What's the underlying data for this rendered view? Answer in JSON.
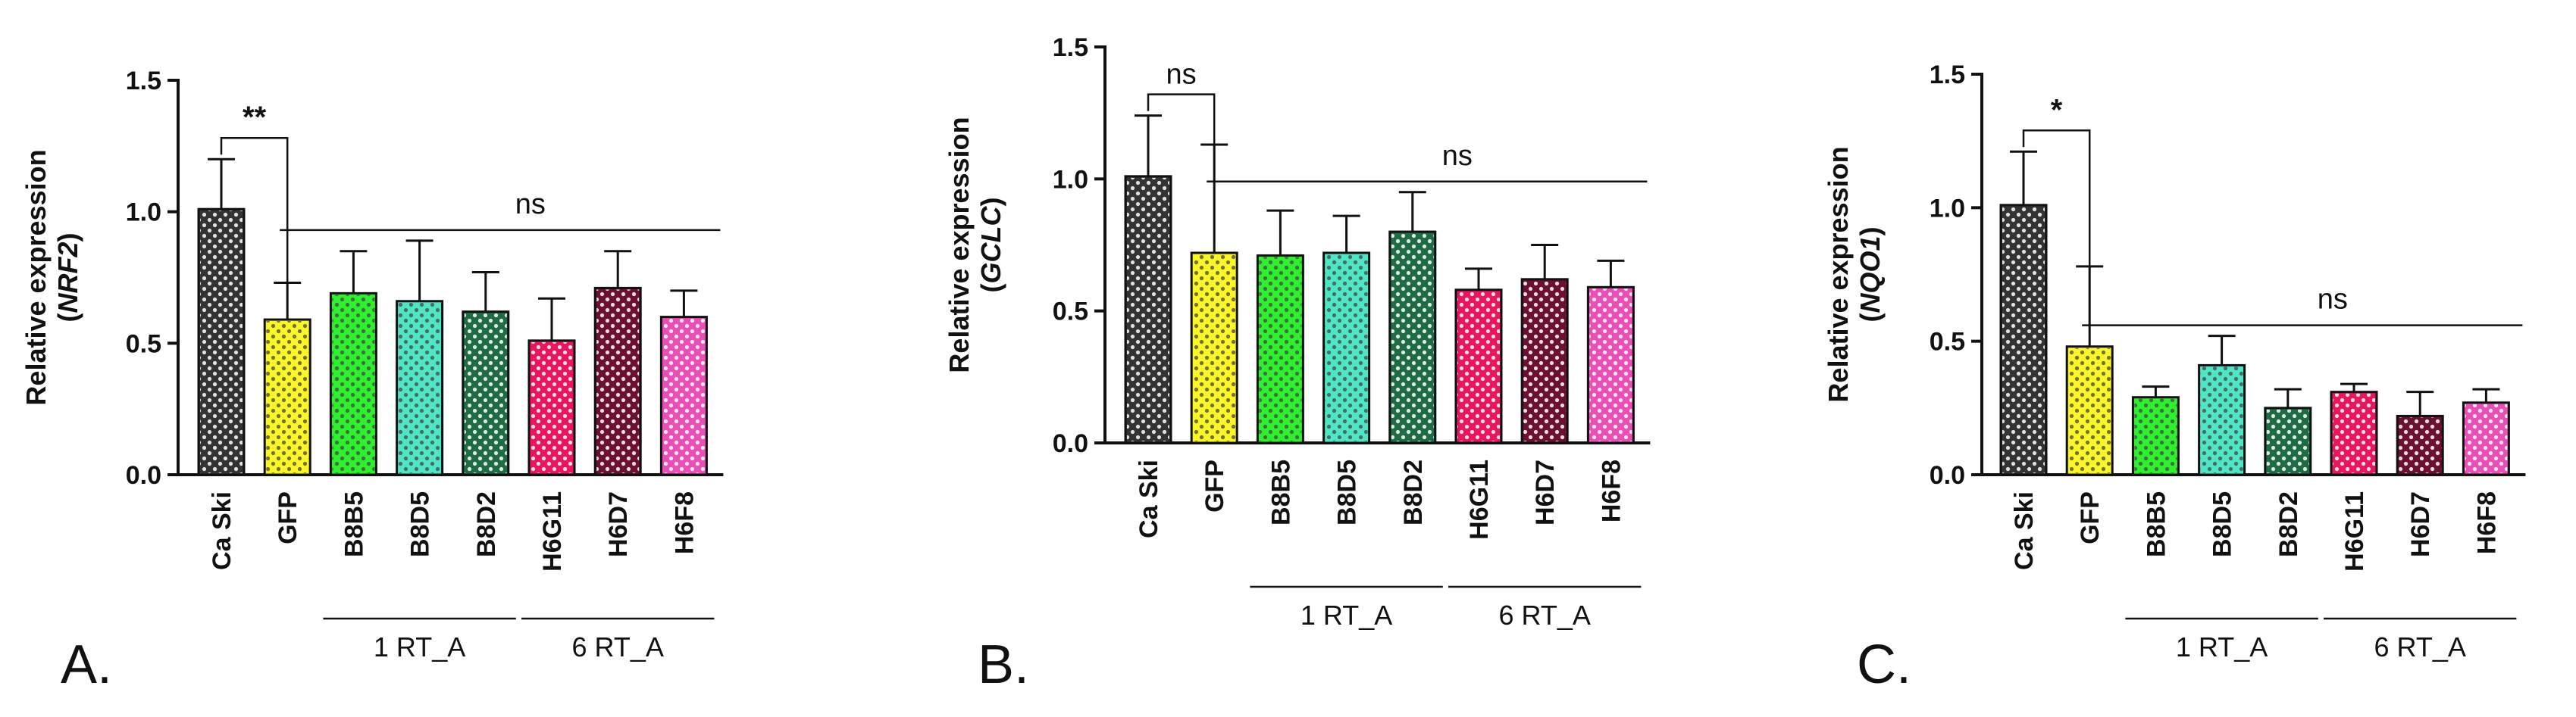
{
  "chart_data": [
    {
      "type": "bar",
      "panel_label": "A.",
      "ylabel": "Relative expression",
      "ylabel_gene": "NRF2",
      "ylim": [
        0,
        1.5
      ],
      "yticks": [
        "0.0",
        "0.5",
        "1.0",
        "1.5"
      ],
      "categories": [
        "Ca Ski",
        "GFP",
        "B8B5",
        "B8D5",
        "B8D2",
        "H6G11",
        "H6D7",
        "H6F8"
      ],
      "values": [
        1.01,
        0.59,
        0.69,
        0.66,
        0.62,
        0.51,
        0.71,
        0.6
      ],
      "errors": [
        0.19,
        0.14,
        0.16,
        0.23,
        0.15,
        0.16,
        0.14,
        0.1
      ],
      "colors": [
        "#333333",
        "#fbf629",
        "#2ef02e",
        "#4ee6c4",
        "#1e6b44",
        "#ea155f",
        "#6b0f33",
        "#ea4fb5"
      ],
      "groups": [
        {
          "label": "1 RT_A",
          "from": 2,
          "to": 4
        },
        {
          "label": "6 RT_A",
          "from": 5,
          "to": 7
        }
      ],
      "significance": [
        {
          "label": "**",
          "type": "pair",
          "from": 0,
          "to": 1
        },
        {
          "label": "ns",
          "type": "span",
          "from": 1,
          "to": 7
        }
      ]
    },
    {
      "type": "bar",
      "panel_label": "B.",
      "ylabel": "Relative expression",
      "ylabel_gene": "GCLC",
      "ylim": [
        0,
        1.5
      ],
      "yticks": [
        "0.0",
        "0.5",
        "1.0",
        "1.5"
      ],
      "categories": [
        "Ca Ski",
        "GFP",
        "B8B5",
        "B8D5",
        "B8D2",
        "H6G11",
        "H6D7",
        "H6F8"
      ],
      "values": [
        1.01,
        0.72,
        0.71,
        0.72,
        0.8,
        0.58,
        0.62,
        0.59
      ],
      "errors": [
        0.23,
        0.41,
        0.17,
        0.14,
        0.15,
        0.08,
        0.13,
        0.1
      ],
      "colors": [
        "#333333",
        "#fbf629",
        "#2ef02e",
        "#4ee6c4",
        "#1e6b44",
        "#ea155f",
        "#6b0f33",
        "#ea4fb5"
      ],
      "groups": [
        {
          "label": "1 RT_A",
          "from": 2,
          "to": 4
        },
        {
          "label": "6 RT_A",
          "from": 5,
          "to": 7
        }
      ],
      "significance": [
        {
          "label": "ns",
          "type": "pair",
          "from": 0,
          "to": 1
        },
        {
          "label": "ns",
          "type": "span",
          "from": 1,
          "to": 7
        }
      ]
    },
    {
      "type": "bar",
      "panel_label": "C.",
      "ylabel": "Relative expression",
      "ylabel_gene": "NQO1",
      "ylim": [
        0,
        1.5
      ],
      "yticks": [
        "0.0",
        "0.5",
        "1.0",
        "1.5"
      ],
      "categories": [
        "Ca Ski",
        "GFP",
        "B8B5",
        "B8D5",
        "B8D2",
        "H6G11",
        "H6D7",
        "H6F8"
      ],
      "values": [
        1.01,
        0.48,
        0.29,
        0.41,
        0.25,
        0.31,
        0.22,
        0.27
      ],
      "errors": [
        0.2,
        0.3,
        0.04,
        0.11,
        0.07,
        0.03,
        0.09,
        0.05
      ],
      "colors": [
        "#333333",
        "#fbf629",
        "#2ef02e",
        "#4ee6c4",
        "#1e6b44",
        "#ea155f",
        "#6b0f33",
        "#ea4fb5"
      ],
      "groups": [
        {
          "label": "1 RT_A",
          "from": 2,
          "to": 4
        },
        {
          "label": "6 RT_A",
          "from": 5,
          "to": 7
        }
      ],
      "significance": [
        {
          "label": "*",
          "type": "pair",
          "from": 0,
          "to": 1
        },
        {
          "label": "ns",
          "type": "span",
          "from": 1,
          "to": 7
        }
      ]
    }
  ]
}
